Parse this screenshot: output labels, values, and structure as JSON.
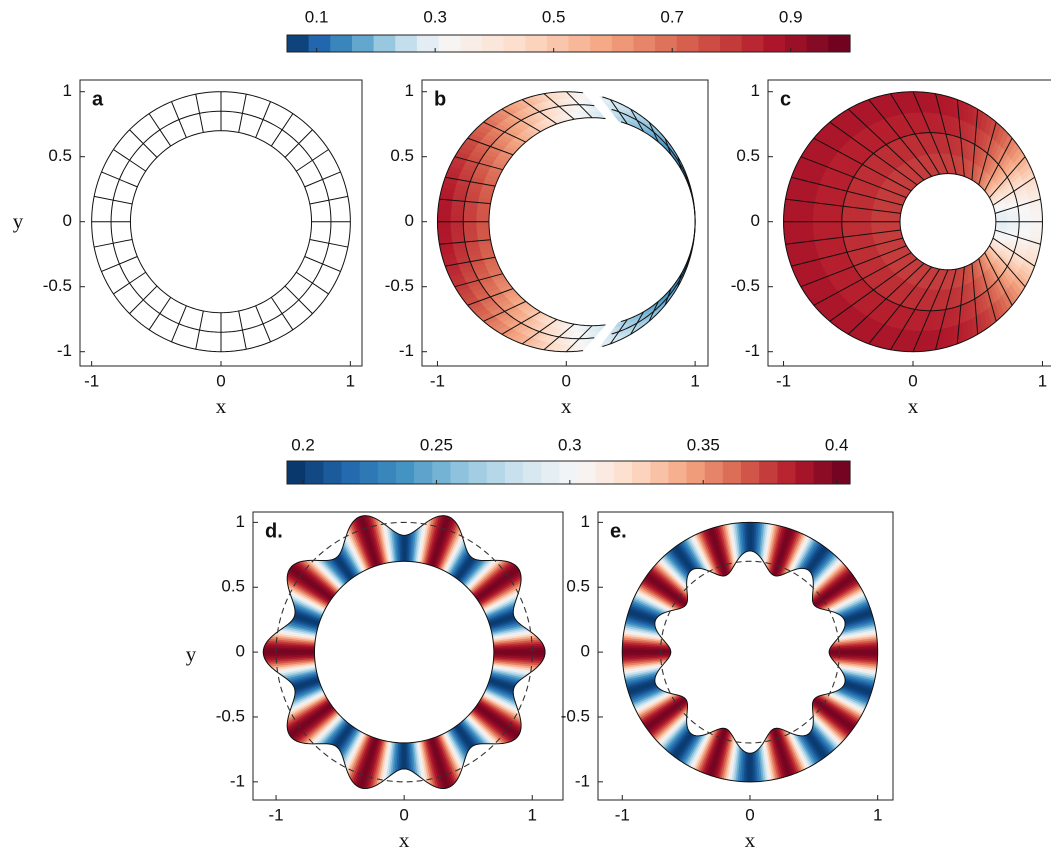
{
  "chart_data": [
    {
      "type": "colorbar",
      "clim": [
        0.05,
        1.0
      ],
      "ticks": [
        0.1,
        0.3,
        0.5,
        0.7,
        0.9
      ]
    },
    {
      "type": "mesh",
      "panel_label": "a",
      "xlabel": "x",
      "ylabel": "y",
      "xlim": [
        -1.09,
        1.09
      ],
      "ylim": [
        -1.11,
        1.09
      ],
      "xticks": [
        -1,
        0,
        1
      ],
      "yticks": [
        1,
        0.5,
        0,
        -0.5,
        -1
      ]
    },
    {
      "type": "deformed",
      "panel_label": "b",
      "xlabel": "x",
      "xlim": [
        -1.12,
        1.1
      ],
      "ylim": [
        -1.11,
        1.09
      ],
      "xticks": [
        -1,
        0,
        1
      ],
      "yticks": [
        1,
        0.5,
        0,
        -0.5,
        -1
      ]
    },
    {
      "type": "filled",
      "panel_label": "c",
      "xlabel": "x",
      "xlim": [
        -1.12,
        1.12
      ],
      "ylim": [
        -1.11,
        1.09
      ],
      "xticks": [
        -1,
        0,
        1
      ],
      "yticks": [
        1,
        0.5,
        0,
        -0.5,
        -1
      ]
    },
    {
      "type": "colorbar",
      "clim": [
        0.194,
        0.405
      ],
      "ticks": [
        0.2,
        0.25,
        0.3,
        0.35,
        0.4
      ]
    },
    {
      "type": "wavy-outer",
      "panel_label": "d.",
      "xlabel": "x",
      "ylabel": "y",
      "xlim": [
        -1.18,
        1.24
      ],
      "ylim": [
        -1.14,
        1.08
      ],
      "xticks": [
        -1,
        0,
        1
      ],
      "yticks": [
        1,
        0.5,
        0,
        -0.5,
        -1
      ]
    },
    {
      "type": "wavy-inner",
      "panel_label": "e.",
      "xlabel": "x",
      "xlim": [
        -1.19,
        1.12
      ],
      "ylim": [
        -1.14,
        1.08
      ],
      "xticks": [
        -1,
        0,
        1
      ],
      "yticks": [
        1,
        0.5,
        0,
        -0.5,
        -1
      ]
    }
  ]
}
